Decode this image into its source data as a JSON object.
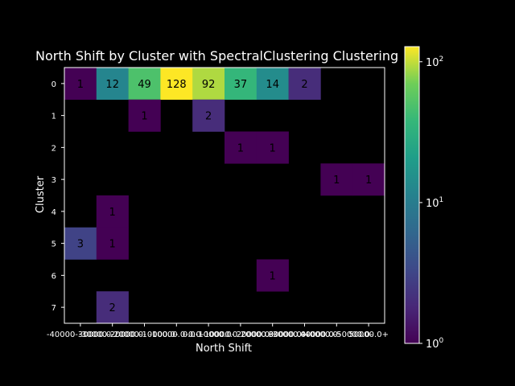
{
  "chart_data": {
    "type": "heatmap",
    "title": "North Shift by Cluster with SpectralClustering Clustering",
    "xlabel": "North Shift",
    "ylabel": "Cluster",
    "x_categories": [
      "-40000.0-",
      "-30000.0-",
      "-20000.0-",
      "-10000.0-",
      "0.0-",
      "10000.0-",
      "20000.0-",
      "30000.0-",
      "40000.0-",
      "50000.0+"
    ],
    "x_tick_labels_displayed": [
      "-40000-30000.0-",
      "-30000-20000.0-",
      "-20000-10000.0-",
      "-10000.0-0.0-",
      "0.0-10000.0-",
      "10000.0-20000.0-",
      "20000.0-30000.0-",
      "30000.0-40000.0-",
      "40000.0-50000.0-",
      "50000.0+"
    ],
    "y_categories": [
      "0",
      "1",
      "2",
      "3",
      "4",
      "5",
      "6",
      "7"
    ],
    "values": [
      [
        1,
        12,
        49,
        128,
        92,
        37,
        14,
        2,
        null,
        null
      ],
      [
        null,
        null,
        1,
        null,
        2,
        null,
        null,
        null,
        null,
        null
      ],
      [
        null,
        null,
        null,
        null,
        null,
        1,
        1,
        null,
        null,
        null
      ],
      [
        null,
        null,
        null,
        null,
        null,
        null,
        null,
        null,
        1,
        1
      ],
      [
        null,
        1,
        null,
        null,
        null,
        null,
        null,
        null,
        null,
        null
      ],
      [
        3,
        1,
        null,
        null,
        null,
        null,
        null,
        null,
        null,
        null
      ],
      [
        null,
        null,
        null,
        null,
        null,
        null,
        1,
        null,
        null,
        null
      ],
      [
        null,
        2,
        null,
        null,
        null,
        null,
        null,
        null,
        null,
        null
      ]
    ],
    "colorbar": {
      "scale": "log",
      "range": [
        1,
        128
      ],
      "colormap": "viridis",
      "tick_labels": [
        {
          "base": "10",
          "exp": "0",
          "value": 1
        },
        {
          "base": "10",
          "exp": "1",
          "value": 10
        },
        {
          "base": "10",
          "exp": "2",
          "value": 100
        }
      ]
    },
    "background": "#000000",
    "grid": false
  }
}
